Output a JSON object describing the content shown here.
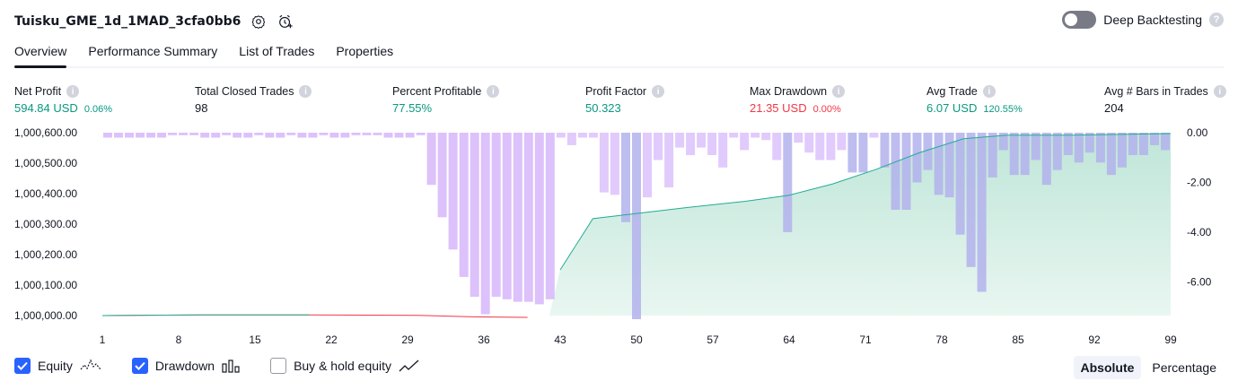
{
  "header": {
    "title": "Tuisku_GME_1d_1MAD_3cfa0bb6",
    "icons": [
      "settings-icon",
      "add-alert-icon"
    ]
  },
  "deep_backtesting": {
    "label": "Deep Backtesting",
    "enabled": false,
    "help": "?"
  },
  "tabs": [
    {
      "label": "Overview",
      "active": true
    },
    {
      "label": "Performance Summary",
      "active": false
    },
    {
      "label": "List of Trades",
      "active": false
    },
    {
      "label": "Properties",
      "active": false
    }
  ],
  "metrics": {
    "net_profit": {
      "label": "Net Profit",
      "value": "594.84 USD",
      "sub": "0.06%",
      "color": "#089981"
    },
    "total_closed_trades": {
      "label": "Total Closed Trades",
      "value": "98",
      "sub": "",
      "color": "#131722"
    },
    "percent_profitable": {
      "label": "Percent Profitable",
      "value": "77.55%",
      "sub": "",
      "color": "#089981"
    },
    "profit_factor": {
      "label": "Profit Factor",
      "value": "50.323",
      "sub": "",
      "color": "#089981"
    },
    "max_drawdown": {
      "label": "Max Drawdown",
      "value": "21.35 USD",
      "sub": "0.00%",
      "color": "#f23645"
    },
    "avg_trade": {
      "label": "Avg Trade",
      "value": "6.07 USD",
      "sub": "120.55%",
      "color": "#089981"
    },
    "avg_bars": {
      "label": "Avg # Bars in Trades",
      "value": "204",
      "sub": "",
      "color": "#131722"
    },
    "info_glyph": "i"
  },
  "chart_data": {
    "type": "area",
    "x_ticks": [
      "1",
      "8",
      "15",
      "22",
      "29",
      "36",
      "43",
      "50",
      "57",
      "64",
      "71",
      "78",
      "85",
      "92",
      "99"
    ],
    "x_range": [
      1,
      99
    ],
    "left_axis": {
      "ticks": [
        "1,000,600.00",
        "1,000,500.00",
        "1,000,400.00",
        "1,000,300.00",
        "1,000,200.00",
        "1,000,100.00",
        "1,000,000.00"
      ],
      "range": [
        1000000,
        1000600
      ]
    },
    "right_axis": {
      "ticks": [
        "0.00",
        "-2.00",
        "-4.00",
        "-6.00"
      ],
      "range": [
        -7.5,
        0
      ]
    },
    "equity": [
      [
        1,
        1000000
      ],
      [
        10,
        1000002
      ],
      [
        20,
        1000002
      ],
      [
        30,
        1000001
      ],
      [
        35,
        999996
      ],
      [
        40,
        999994
      ],
      [
        43,
        1000150
      ],
      [
        46,
        1000318
      ],
      [
        50,
        1000335
      ],
      [
        55,
        1000356
      ],
      [
        60,
        1000375
      ],
      [
        64,
        1000395
      ],
      [
        68,
        1000432
      ],
      [
        72,
        1000480
      ],
      [
        76,
        1000535
      ],
      [
        80,
        1000580
      ],
      [
        84,
        1000592
      ],
      [
        90,
        1000592
      ],
      [
        99,
        1000597
      ]
    ],
    "equity_negative_segment": [
      27,
      41
    ],
    "drawdown": [
      -0.2,
      -0.2,
      -0.2,
      -0.2,
      -0.2,
      -0.2,
      -0.1,
      -0.1,
      -0.1,
      -0.2,
      -0.2,
      -0.1,
      -0.2,
      -0.2,
      -0.1,
      -0.2,
      -0.2,
      -0.1,
      -0.2,
      -0.2,
      -0.1,
      -0.2,
      -0.2,
      -0.1,
      -0.1,
      -0.1,
      -0.2,
      -0.2,
      -0.2,
      -0.1,
      -2.1,
      -3.4,
      -4.7,
      -5.8,
      -6.6,
      -7.3,
      -6.6,
      -6.7,
      -6.8,
      -6.8,
      -6.9,
      -6.7,
      -0.2,
      -0.5,
      -0.2,
      -0.2,
      -2.4,
      -2.5,
      -3.6,
      -7.5,
      -2.6,
      -1.1,
      -2.2,
      -0.6,
      -0.9,
      -0.6,
      -0.9,
      -1.4,
      -0.2,
      -0.7,
      -0.2,
      -0.3,
      -1.1,
      -4.0,
      -0.4,
      -0.8,
      -1.1,
      -1.1,
      -0.7,
      -1.6,
      -1.6,
      -0.2,
      -1.4,
      -3.1,
      -3.1,
      -2.0,
      -1.5,
      -2.5,
      -2.6,
      -4.1,
      -5.4,
      -6.4,
      -1.8,
      -0.7,
      -1.7,
      -1.7,
      -1.1,
      -2.1,
      -1.5,
      -0.9,
      -1.2,
      -0.8,
      -1.2,
      -1.7,
      -1.4,
      -0.9,
      -0.9,
      -0.5,
      -0.7
    ],
    "colors": {
      "equity_line": "#22ab94",
      "equity_line_negative": "#f23645",
      "equity_fill": "#c9eade",
      "drawdown_bar": "#dcc1fb",
      "drawdown_overlap": "#b3b1ec"
    }
  },
  "legend": [
    {
      "label": "Equity",
      "checked": true,
      "icon": "equity-wave-icon"
    },
    {
      "label": "Drawdown",
      "checked": true,
      "icon": "drawdown-bars-icon"
    },
    {
      "label": "Buy & hold equity",
      "checked": false,
      "icon": "buy-hold-line-icon"
    }
  ],
  "scale_toggle": {
    "absolute": "Absolute",
    "percentage": "Percentage",
    "selected": "Absolute"
  }
}
